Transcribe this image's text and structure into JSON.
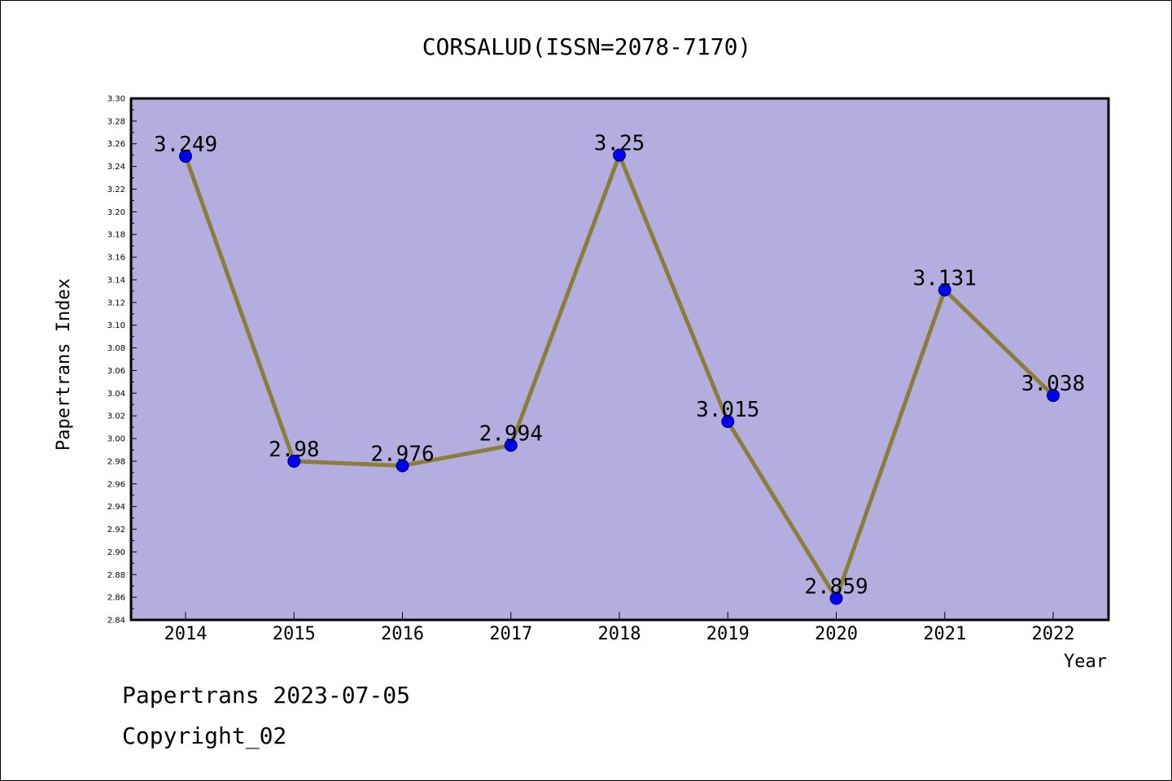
{
  "chart_data": {
    "type": "line",
    "title": "CORSALUD(ISSN=2078-7170)",
    "xlabel": "Year",
    "ylabel": "Papertrans Index",
    "categories": [
      "2014",
      "2015",
      "2016",
      "2017",
      "2018",
      "2019",
      "2020",
      "2021",
      "2022"
    ],
    "values": [
      3.249,
      2.98,
      2.976,
      2.994,
      3.25,
      3.015,
      2.859,
      3.131,
      3.038
    ],
    "data_labels": [
      "3.249",
      "2.98",
      "2.976",
      "2.994",
      "3.25",
      "3.015",
      "2.859",
      "3.131",
      "3.038"
    ],
    "ylim": [
      2.84,
      3.3
    ],
    "y_ticks": [
      "2.84",
      "2.86",
      "2.88",
      "2.90",
      "2.92",
      "2.94",
      "2.96",
      "2.98",
      "3.00",
      "3.02",
      "3.04",
      "3.06",
      "3.08",
      "3.10",
      "3.12",
      "3.14",
      "3.16",
      "3.18",
      "3.20",
      "3.22",
      "3.24",
      "3.26",
      "3.28",
      "3.30"
    ],
    "grid": false,
    "legend": "none",
    "colors": {
      "plot_background": "#b4aee0",
      "line": "#8b7d3a",
      "marker": "#0000ee",
      "marker_edge": "#00007a",
      "frame": "#000000"
    }
  },
  "footer": {
    "date_line": "Papertrans 2023-07-05",
    "copyright_line": "Copyright_02"
  }
}
